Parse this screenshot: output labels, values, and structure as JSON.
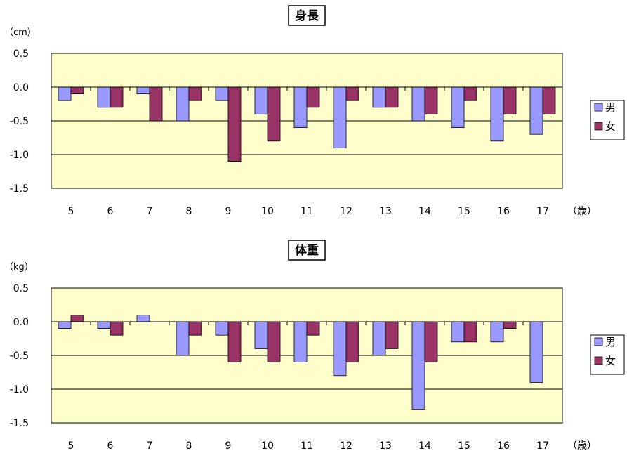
{
  "chart_data": [
    {
      "type": "bar",
      "title": "身長",
      "unit_label": "（cm）",
      "x_unit_label": "（歳）",
      "categories": [
        "5",
        "6",
        "7",
        "8",
        "9",
        "10",
        "11",
        "12",
        "13",
        "14",
        "15",
        "16",
        "17"
      ],
      "yticks": [
        "0.5",
        "0.0",
        "-0.5",
        "-1.0",
        "-1.5"
      ],
      "ylim": [
        -1.5,
        0.5
      ],
      "grid": true,
      "legend_position": "right",
      "series": [
        {
          "name": "男",
          "color": "#9999ff",
          "values": [
            -0.2,
            -0.3,
            -0.1,
            -0.5,
            -0.2,
            -0.4,
            -0.6,
            -0.9,
            -0.3,
            -0.5,
            -0.6,
            -0.8,
            -0.7
          ]
        },
        {
          "name": "女",
          "color": "#993366",
          "values": [
            -0.1,
            -0.3,
            -0.5,
            -0.2,
            -1.1,
            -0.8,
            -0.3,
            -0.2,
            -0.3,
            -0.4,
            -0.2,
            -0.4,
            -0.4
          ]
        }
      ]
    },
    {
      "type": "bar",
      "title": "体重",
      "unit_label": "（kg）",
      "x_unit_label": "（歳）",
      "categories": [
        "5",
        "6",
        "7",
        "8",
        "9",
        "10",
        "11",
        "12",
        "13",
        "14",
        "15",
        "16",
        "17"
      ],
      "yticks": [
        "0.5",
        "0.0",
        "-0.5",
        "-1.0",
        "-1.5"
      ],
      "ylim": [
        -1.5,
        0.5
      ],
      "grid": true,
      "legend_position": "right",
      "series": [
        {
          "name": "男",
          "color": "#9999ff",
          "values": [
            -0.1,
            -0.1,
            0.1,
            -0.5,
            -0.2,
            -0.4,
            -0.6,
            -0.8,
            -0.5,
            -1.3,
            -0.3,
            -0.3,
            -0.9
          ]
        },
        {
          "name": "女",
          "color": "#993366",
          "values": [
            0.1,
            -0.2,
            0.0,
            -0.2,
            -0.6,
            -0.6,
            -0.2,
            -0.6,
            -0.4,
            -0.6,
            -0.3,
            -0.1,
            0.0
          ]
        }
      ]
    }
  ],
  "colors": {
    "plot_background": "#ffffcc",
    "grid": "#000000"
  }
}
